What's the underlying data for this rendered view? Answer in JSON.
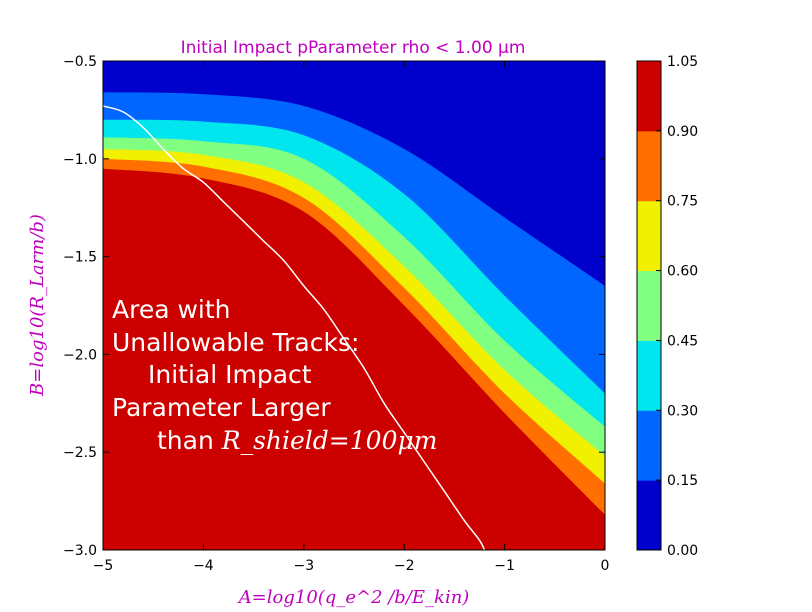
{
  "chart_data": {
    "type": "contourf",
    "title": "Initial Impact pParameter rho < 1.00 μm",
    "xlabel": "A=log10(q_e^2 /b/E_kin)",
    "ylabel": "B=log10(R_Larm/b)",
    "xlim": [
      -5,
      0
    ],
    "ylim": [
      -3,
      -0.5
    ],
    "x_ticks": [
      "−5",
      "−4",
      "−3",
      "−2",
      "−1",
      "0"
    ],
    "y_ticks": [
      "−0.5",
      "−1.0",
      "−1.5",
      "−2.0",
      "−2.5",
      "−3.0"
    ],
    "colorbar": {
      "levels": [
        0.0,
        0.15,
        0.3,
        0.45,
        0.6,
        0.75,
        0.9,
        1.05
      ],
      "tick_labels": [
        "0.00",
        "0.15",
        "0.30",
        "0.45",
        "0.60",
        "0.75",
        "0.90",
        "1.05"
      ],
      "colors": [
        "#0000cd",
        "#0066ff",
        "#00e5ee",
        "#80ff80",
        "#f0f000",
        "#ff7000",
        "#cd0000"
      ]
    },
    "boundaries": [
      {
        "level": 0.15,
        "points": [
          [
            -5,
            -0.66
          ],
          [
            -4,
            -0.67
          ],
          [
            -3,
            -0.73
          ],
          [
            -2,
            -0.95
          ],
          [
            -1,
            -1.3
          ],
          [
            0,
            -1.65
          ]
        ]
      },
      {
        "level": 0.3,
        "points": [
          [
            -5,
            -0.8
          ],
          [
            -4,
            -0.81
          ],
          [
            -3,
            -0.88
          ],
          [
            -2,
            -1.18
          ],
          [
            -1,
            -1.7
          ],
          [
            0,
            -2.2
          ]
        ]
      },
      {
        "level": 0.45,
        "points": [
          [
            -5,
            -0.89
          ],
          [
            -4,
            -0.91
          ],
          [
            -3,
            -1.0
          ],
          [
            -2,
            -1.4
          ],
          [
            -1,
            -1.93
          ],
          [
            0,
            -2.37
          ]
        ]
      },
      {
        "level": 0.6,
        "points": [
          [
            -5,
            -0.95
          ],
          [
            -4,
            -0.98
          ],
          [
            -3,
            -1.12
          ],
          [
            -2,
            -1.55
          ],
          [
            -1,
            -2.08
          ],
          [
            0,
            -2.52
          ]
        ]
      },
      {
        "level": 0.75,
        "points": [
          [
            -5,
            -1.0
          ],
          [
            -4,
            -1.04
          ],
          [
            -3,
            -1.2
          ],
          [
            -2,
            -1.66
          ],
          [
            -1,
            -2.2
          ],
          [
            0,
            -2.66
          ]
        ]
      },
      {
        "level": 0.9,
        "points": [
          [
            -5,
            -1.05
          ],
          [
            -4,
            -1.1
          ],
          [
            -3,
            -1.27
          ],
          [
            -2,
            -1.75
          ],
          [
            -1,
            -2.3
          ],
          [
            0,
            -2.82
          ]
        ]
      }
    ],
    "white_curve": [
      [
        -5,
        -0.73
      ],
      [
        -4.8,
        -0.76
      ],
      [
        -4.6,
        -0.84
      ],
      [
        -4.4,
        -0.95
      ],
      [
        -4.2,
        -1.05
      ],
      [
        -4.0,
        -1.12
      ],
      [
        -3.8,
        -1.22
      ],
      [
        -3.6,
        -1.32
      ],
      [
        -3.4,
        -1.42
      ],
      [
        -3.2,
        -1.52
      ],
      [
        -3.0,
        -1.65
      ],
      [
        -2.8,
        -1.77
      ],
      [
        -2.6,
        -1.92
      ],
      [
        -2.4,
        -2.07
      ],
      [
        -2.2,
        -2.25
      ],
      [
        -2.0,
        -2.4
      ],
      [
        -1.8,
        -2.55
      ],
      [
        -1.6,
        -2.7
      ],
      [
        -1.4,
        -2.85
      ],
      [
        -1.25,
        -2.95
      ],
      [
        -1.2,
        -3.0
      ]
    ],
    "annotation": {
      "lines": [
        "Area with",
        "Unallowable Tracks:",
        "Initial Impact",
        "Parameter Larger"
      ],
      "last_prefix": "than ",
      "last_math": "R_shield=100μm"
    }
  }
}
